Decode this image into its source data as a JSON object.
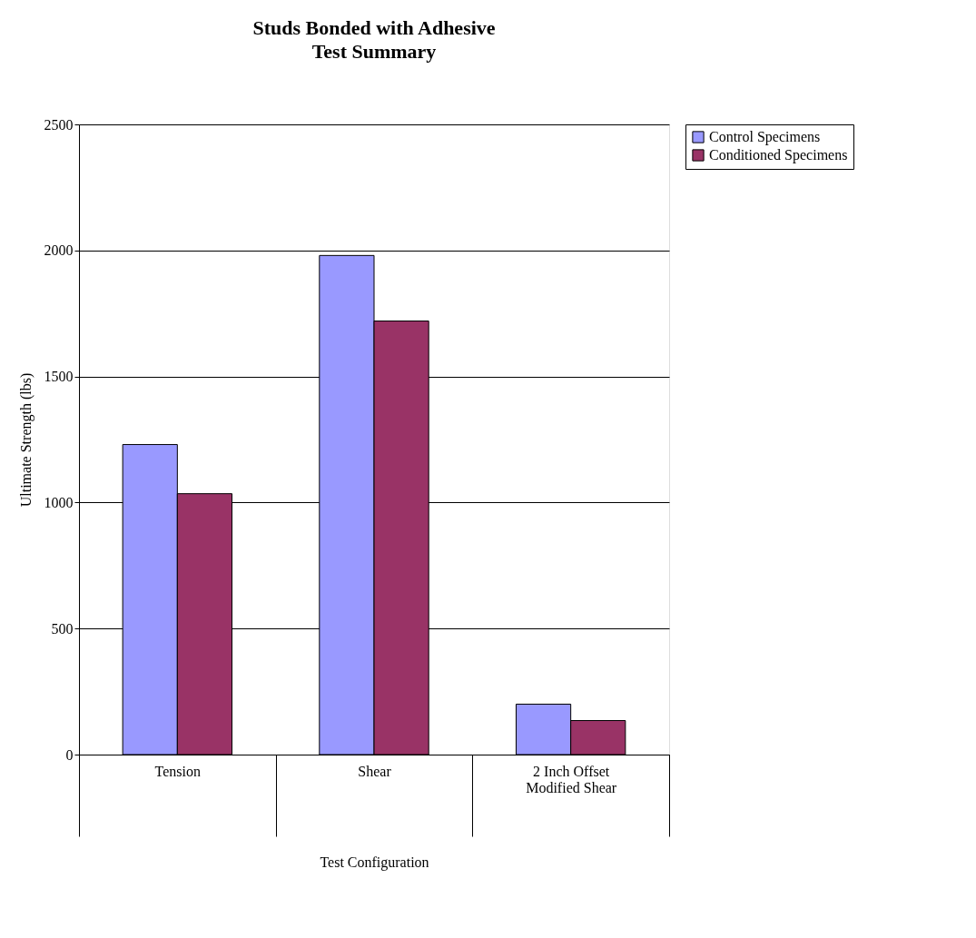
{
  "chart_data": {
    "type": "bar",
    "title": "Studs Bonded with Adhesive",
    "subtitle": "Test Summary",
    "xlabel": "Test Configuration",
    "ylabel": "Ultimate Strength (lbs)",
    "categories": [
      "Tension",
      "Shear",
      "2 Inch Offset Modified Shear"
    ],
    "series": [
      {
        "name": "Control Specimens",
        "color": "#9999ff",
        "values": [
          1230,
          1980,
          200
        ]
      },
      {
        "name": "Conditioned Specimens",
        "color": "#993366",
        "values": [
          1035,
          1720,
          135
        ]
      }
    ],
    "ylim": [
      0,
      2500
    ],
    "yticks": [
      0,
      500,
      1000,
      1500,
      2000,
      2500
    ],
    "grid": "y",
    "legend": "right"
  }
}
